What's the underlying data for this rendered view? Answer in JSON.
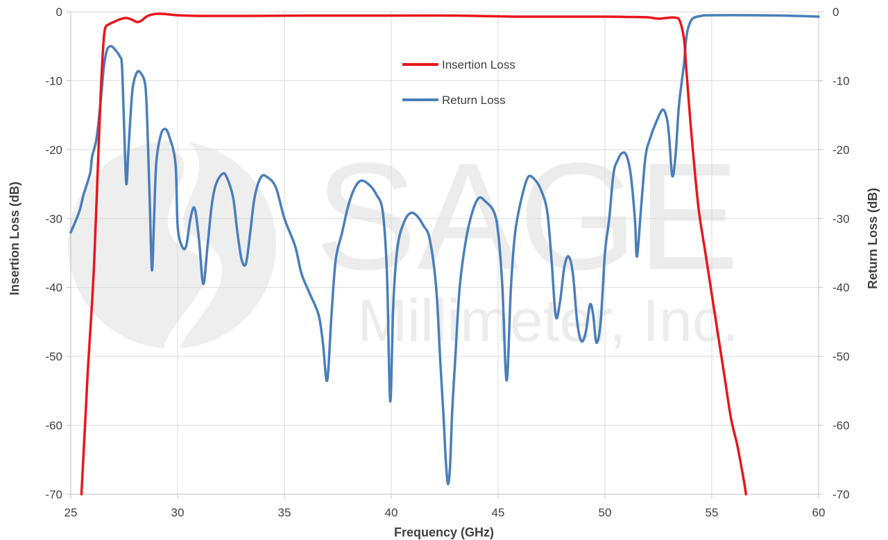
{
  "watermark": {
    "line1": "SAGE",
    "line2": "Millimeter, Inc."
  },
  "chart_data": {
    "type": "line",
    "xlabel": "Frequency (GHz)",
    "ylabel_left": "Insertion Loss (dB)",
    "ylabel_right": "Return Loss (dB)",
    "xlim": [
      25,
      60
    ],
    "ylim": [
      -70,
      0
    ],
    "xticks": [
      25,
      30,
      35,
      40,
      45,
      50,
      55,
      60
    ],
    "yticks": [
      0,
      -10,
      -20,
      -30,
      -40,
      -50,
      -60,
      -70
    ],
    "grid": true,
    "legend_position": "top-center",
    "series": [
      {
        "name": "Insertion Loss",
        "color": "#e8161b",
        "axis": "left",
        "points": [
          [
            25.5,
            -70
          ],
          [
            25.6,
            -64
          ],
          [
            25.7,
            -58
          ],
          [
            25.8,
            -52
          ],
          [
            25.9,
            -47
          ],
          [
            26.0,
            -42
          ],
          [
            26.1,
            -36
          ],
          [
            26.2,
            -28
          ],
          [
            26.3,
            -20
          ],
          [
            26.4,
            -12
          ],
          [
            26.5,
            -6
          ],
          [
            26.6,
            -2.5
          ],
          [
            26.8,
            -1.8
          ],
          [
            27.0,
            -1.5
          ],
          [
            27.3,
            -1.1
          ],
          [
            27.6,
            -0.9
          ],
          [
            27.9,
            -1.2
          ],
          [
            28.1,
            -1.5
          ],
          [
            28.3,
            -1.3
          ],
          [
            28.6,
            -0.6
          ],
          [
            29.0,
            -0.3
          ],
          [
            29.5,
            -0.35
          ],
          [
            30,
            -0.5
          ],
          [
            31,
            -0.6
          ],
          [
            33,
            -0.6
          ],
          [
            36,
            -0.55
          ],
          [
            40,
            -0.55
          ],
          [
            43,
            -0.55
          ],
          [
            46,
            -0.7
          ],
          [
            50,
            -0.7
          ],
          [
            51,
            -0.75
          ],
          [
            52,
            -0.8
          ],
          [
            52.5,
            -1.0
          ],
          [
            53.0,
            -0.85
          ],
          [
            53.3,
            -0.85
          ],
          [
            53.5,
            -1.3
          ],
          [
            53.7,
            -4
          ],
          [
            53.8,
            -8
          ],
          [
            53.9,
            -12
          ],
          [
            54.0,
            -16
          ],
          [
            54.2,
            -23
          ],
          [
            54.4,
            -29
          ],
          [
            54.7,
            -35
          ],
          [
            55.0,
            -41
          ],
          [
            55.3,
            -47
          ],
          [
            55.6,
            -53
          ],
          [
            55.9,
            -59
          ],
          [
            56.2,
            -63
          ],
          [
            56.5,
            -68
          ],
          [
            56.6,
            -70
          ]
        ]
      },
      {
        "name": "Return Loss",
        "color": "#4a7ebb",
        "axis": "right",
        "points": [
          [
            25.0,
            -32
          ],
          [
            25.4,
            -29
          ],
          [
            25.6,
            -26.5
          ],
          [
            25.9,
            -23.5
          ],
          [
            26.0,
            -21
          ],
          [
            26.2,
            -18.5
          ],
          [
            26.4,
            -13
          ],
          [
            26.55,
            -8
          ],
          [
            26.7,
            -5.5
          ],
          [
            26.9,
            -5.0
          ],
          [
            27.1,
            -5.6
          ],
          [
            27.3,
            -6.5
          ],
          [
            27.4,
            -8.0
          ],
          [
            27.5,
            -17
          ],
          [
            27.6,
            -25
          ],
          [
            27.7,
            -20
          ],
          [
            27.8,
            -15
          ],
          [
            27.9,
            -11
          ],
          [
            28.1,
            -8.8
          ],
          [
            28.3,
            -9.0
          ],
          [
            28.5,
            -11
          ],
          [
            28.6,
            -18
          ],
          [
            28.7,
            -28
          ],
          [
            28.8,
            -37.5
          ],
          [
            28.9,
            -30
          ],
          [
            29.0,
            -22
          ],
          [
            29.2,
            -18
          ],
          [
            29.4,
            -17
          ],
          [
            29.6,
            -18
          ],
          [
            29.9,
            -22
          ],
          [
            30.0,
            -31
          ],
          [
            30.2,
            -34
          ],
          [
            30.4,
            -34
          ],
          [
            30.6,
            -30
          ],
          [
            30.8,
            -28.5
          ],
          [
            31.0,
            -33
          ],
          [
            31.2,
            -39.5
          ],
          [
            31.4,
            -34
          ],
          [
            31.6,
            -28
          ],
          [
            31.8,
            -25
          ],
          [
            32.1,
            -23.5
          ],
          [
            32.3,
            -24
          ],
          [
            32.6,
            -27
          ],
          [
            32.8,
            -32
          ],
          [
            33.0,
            -36
          ],
          [
            33.2,
            -36.5
          ],
          [
            33.4,
            -32
          ],
          [
            33.6,
            -27
          ],
          [
            33.9,
            -24
          ],
          [
            34.2,
            -24
          ],
          [
            34.6,
            -25.5
          ],
          [
            35.0,
            -30
          ],
          [
            35.5,
            -34
          ],
          [
            35.8,
            -38
          ],
          [
            36.2,
            -41
          ],
          [
            36.6,
            -44
          ],
          [
            36.8,
            -48
          ],
          [
            37.0,
            -53.5
          ],
          [
            37.2,
            -44
          ],
          [
            37.4,
            -36
          ],
          [
            37.7,
            -32
          ],
          [
            38.0,
            -28
          ],
          [
            38.3,
            -25.5
          ],
          [
            38.6,
            -24.5
          ],
          [
            39.0,
            -25.2
          ],
          [
            39.3,
            -26.5
          ],
          [
            39.6,
            -29
          ],
          [
            39.8,
            -38
          ],
          [
            39.95,
            -56.5
          ],
          [
            40.1,
            -42
          ],
          [
            40.3,
            -34
          ],
          [
            40.6,
            -30.5
          ],
          [
            40.9,
            -29.2
          ],
          [
            41.2,
            -29.6
          ],
          [
            41.5,
            -31
          ],
          [
            41.8,
            -33
          ],
          [
            42.1,
            -40
          ],
          [
            42.3,
            -51
          ],
          [
            42.45,
            -59
          ],
          [
            42.55,
            -65
          ],
          [
            42.65,
            -68.5
          ],
          [
            42.75,
            -66
          ],
          [
            42.85,
            -58
          ],
          [
            43.0,
            -50
          ],
          [
            43.2,
            -40
          ],
          [
            43.5,
            -33
          ],
          [
            43.8,
            -29
          ],
          [
            44.1,
            -27
          ],
          [
            44.4,
            -27.5
          ],
          [
            44.8,
            -29
          ],
          [
            45.0,
            -32
          ],
          [
            45.2,
            -40
          ],
          [
            45.4,
            -53.5
          ],
          [
            45.6,
            -40
          ],
          [
            45.8,
            -32
          ],
          [
            46.1,
            -27
          ],
          [
            46.4,
            -24
          ],
          [
            46.7,
            -24.3
          ],
          [
            47.0,
            -25.8
          ],
          [
            47.3,
            -29
          ],
          [
            47.5,
            -36
          ],
          [
            47.7,
            -44.2
          ],
          [
            47.9,
            -42
          ],
          [
            48.1,
            -37
          ],
          [
            48.3,
            -35.5
          ],
          [
            48.5,
            -38
          ],
          [
            48.7,
            -45
          ],
          [
            48.9,
            -47.8
          ],
          [
            49.1,
            -46.5
          ],
          [
            49.3,
            -42.5
          ],
          [
            49.45,
            -44
          ],
          [
            49.6,
            -48
          ],
          [
            49.8,
            -45
          ],
          [
            50.0,
            -35
          ],
          [
            50.2,
            -30
          ],
          [
            50.4,
            -23.5
          ],
          [
            50.6,
            -21.5
          ],
          [
            50.8,
            -20.5
          ],
          [
            51.0,
            -20.8
          ],
          [
            51.2,
            -23.5
          ],
          [
            51.4,
            -30
          ],
          [
            51.5,
            -35.5
          ],
          [
            51.7,
            -28
          ],
          [
            51.9,
            -21
          ],
          [
            52.1,
            -18.5
          ],
          [
            52.4,
            -16
          ],
          [
            52.7,
            -14.2
          ],
          [
            52.9,
            -15.5
          ],
          [
            53.0,
            -18
          ],
          [
            53.15,
            -23.8
          ],
          [
            53.3,
            -21
          ],
          [
            53.45,
            -14
          ],
          [
            53.6,
            -10
          ],
          [
            53.7,
            -7.5
          ],
          [
            53.8,
            -4
          ],
          [
            53.9,
            -2.3
          ],
          [
            54.1,
            -1.0
          ],
          [
            54.5,
            -0.6
          ],
          [
            55,
            -0.5
          ],
          [
            57,
            -0.5
          ],
          [
            59,
            -0.6
          ],
          [
            60,
            -0.7
          ]
        ]
      }
    ]
  }
}
